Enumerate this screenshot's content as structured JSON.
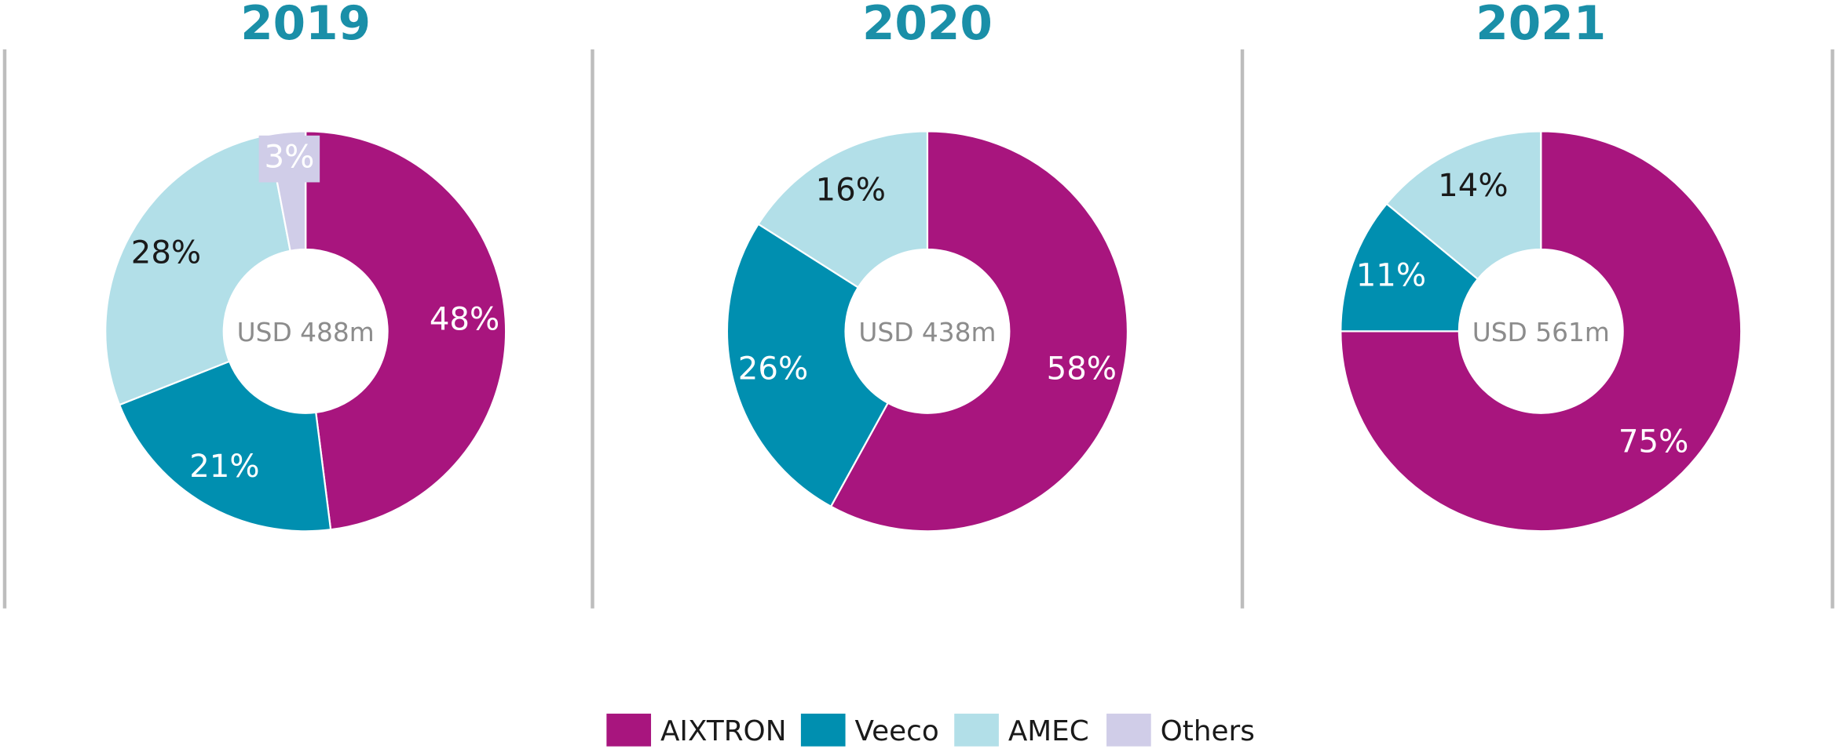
{
  "chart_data": [
    {
      "type": "pie",
      "title": "2019",
      "center_label": "USD 488m",
      "categories": [
        "AIXTRON",
        "Veeco",
        "AMEC",
        "Others"
      ],
      "values": [
        48,
        21,
        28,
        3
      ],
      "value_labels": [
        "48%",
        "21%",
        "28%",
        "3%"
      ],
      "colors": [
        "#a8157e",
        "#008fb0",
        "#b2dfe8",
        "#d0cde8"
      ],
      "label_colors": [
        "#ffffff",
        "#ffffff",
        "#1a1a1a",
        "#ffffff"
      ]
    },
    {
      "type": "pie",
      "title": "2020",
      "center_label": "USD 438m",
      "categories": [
        "AIXTRON",
        "Veeco",
        "AMEC"
      ],
      "values": [
        58,
        26,
        16
      ],
      "value_labels": [
        "58%",
        "26%",
        "16%"
      ],
      "colors": [
        "#a8157e",
        "#008fb0",
        "#b2dfe8"
      ],
      "label_colors": [
        "#ffffff",
        "#ffffff",
        "#1a1a1a"
      ]
    },
    {
      "type": "pie",
      "title": "2021",
      "center_label": "USD 561m",
      "categories": [
        "AIXTRON",
        "Veeco",
        "AMEC"
      ],
      "values": [
        75,
        11,
        14
      ],
      "value_labels": [
        "75%",
        "11%",
        "14%"
      ],
      "colors": [
        "#a8157e",
        "#008fb0",
        "#b2dfe8"
      ],
      "label_colors": [
        "#ffffff",
        "#ffffff",
        "#1a1a1a"
      ]
    }
  ],
  "legend": {
    "labels": [
      "AIXTRON",
      "Veeco",
      "AMEC",
      "Others"
    ],
    "colors": [
      "#a8157e",
      "#008fb0",
      "#b2dfe8",
      "#d0cde8"
    ]
  }
}
